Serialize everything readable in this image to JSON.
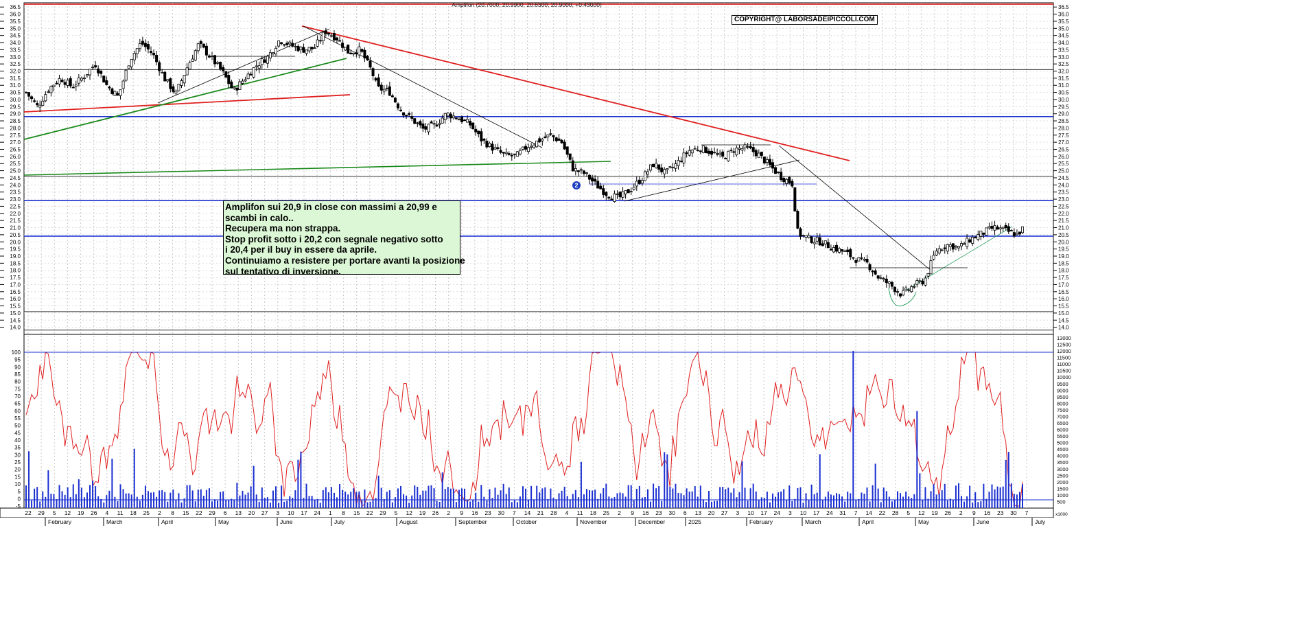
{
  "chart_data": [
    {
      "type": "candlestick",
      "title": "Amplifon (20.7000, 20.9900, 20.6300, 20.9000, +0.43000)",
      "ylim": [
        13.5,
        36.8
      ],
      "y_ticks": [
        "36.5",
        "36.0",
        "35.5",
        "35.0",
        "34.5",
        "34.0",
        "33.5",
        "33.0",
        "32.5",
        "32.0",
        "31.5",
        "31.0",
        "30.5",
        "30.0",
        "29.5",
        "29.0",
        "28.5",
        "28.0",
        "27.5",
        "27.0",
        "26.5",
        "26.0",
        "25.5",
        "25.0",
        "24.5",
        "24.0",
        "23.5",
        "23.0",
        "22.5",
        "22.0",
        "21.5",
        "21.0",
        "20.5",
        "20.0",
        "19.5",
        "19.0",
        "18.5",
        "18.0",
        "17.5",
        "17.0",
        "16.5",
        "16.0",
        "15.5",
        "15.0",
        "14.5",
        "14.0"
      ],
      "price_path": [
        [
          0,
          30.5
        ],
        [
          2,
          29.5
        ],
        [
          4,
          30.8
        ],
        [
          6,
          31.5
        ],
        [
          8,
          30.9
        ],
        [
          10,
          31.6
        ],
        [
          12,
          32.5
        ],
        [
          14,
          31.0
        ],
        [
          16,
          30.2
        ],
        [
          18,
          32.8
        ],
        [
          20,
          34.0
        ],
        [
          22,
          33.2
        ],
        [
          24,
          31.5
        ],
        [
          26,
          30.4
        ],
        [
          28,
          32.3
        ],
        [
          30,
          33.9
        ],
        [
          32,
          33.0
        ],
        [
          34,
          32.0
        ],
        [
          36,
          30.6
        ],
        [
          38,
          31.5
        ],
        [
          40,
          32.4
        ],
        [
          42,
          33.0
        ],
        [
          44,
          34.2
        ],
        [
          46,
          33.8
        ],
        [
          48,
          33.5
        ],
        [
          50,
          33.6
        ],
        [
          52,
          34.8
        ],
        [
          54,
          34.3
        ],
        [
          56,
          33.3
        ],
        [
          58,
          33.5
        ],
        [
          60,
          32.0
        ],
        [
          61,
          30.8
        ],
        [
          63,
          30.6
        ],
        [
          65,
          29.3
        ],
        [
          67,
          28.6
        ],
        [
          69,
          27.9
        ],
        [
          71,
          28.2
        ],
        [
          73,
          29.0
        ],
        [
          75,
          28.7
        ],
        [
          77,
          28.3
        ],
        [
          79,
          27.2
        ],
        [
          81,
          26.6
        ],
        [
          83,
          26.1
        ],
        [
          85,
          26.0
        ],
        [
          87,
          26.7
        ],
        [
          89,
          27.1
        ],
        [
          91,
          27.5
        ],
        [
          93,
          27.0
        ],
        [
          95,
          25.1
        ],
        [
          97,
          24.8
        ],
        [
          99,
          24.0
        ],
        [
          101,
          23.3
        ],
        [
          103,
          23.1
        ],
        [
          105,
          23.7
        ],
        [
          107,
          24.5
        ],
        [
          109,
          25.5
        ],
        [
          111,
          24.8
        ],
        [
          113,
          25.5
        ],
        [
          115,
          26.4
        ],
        [
          117,
          26.6
        ],
        [
          119,
          26.3
        ],
        [
          121,
          25.9
        ],
        [
          123,
          26.5
        ],
        [
          125,
          26.6
        ],
        [
          127,
          26.2
        ],
        [
          129,
          25.4
        ],
        [
          131,
          24.6
        ],
        [
          133,
          24.1
        ],
        [
          134,
          20.6
        ],
        [
          136,
          20.2
        ],
        [
          138,
          20.0
        ],
        [
          140,
          19.6
        ],
        [
          142,
          19.3
        ],
        [
          144,
          18.8
        ],
        [
          146,
          18.5
        ],
        [
          148,
          17.5
        ],
        [
          150,
          17.0
        ],
        [
          152,
          16.3
        ],
        [
          154,
          16.9
        ],
        [
          156,
          17.3
        ],
        [
          158,
          19.4
        ],
        [
          160,
          19.8
        ],
        [
          162,
          19.6
        ],
        [
          164,
          20.2
        ],
        [
          166,
          20.6
        ],
        [
          168,
          21.0
        ],
        [
          170,
          20.8
        ],
        [
          172,
          20.5
        ],
        [
          173,
          20.9
        ]
      ],
      "annotation": [
        "Amplifon sui 20,9  in close con massimi a 20,99 e",
        "scambi in calo..",
        "Recupera ma non strappa.",
        "Stop profit sotto i 20,2 con segnale negativo sotto",
        "i 20,4 per il buy in essere da aprile.",
        "Continuiamo a resistere per portare avanti la posizione",
        "sul tentativo di inversione."
      ],
      "copyright": "COPYRIGHT@ LABORSADEIPICCOLI.COM",
      "badge": "2",
      "horizontal_levels": [
        {
          "y": 36.7,
          "color": "#e02020"
        },
        {
          "y": 32.1,
          "color": "#333333"
        },
        {
          "y": 28.8,
          "color": "#1a2fd0"
        },
        {
          "y": 24.6,
          "color": "#333333"
        },
        {
          "y": 22.9,
          "color": "#1a2fd0"
        },
        {
          "y": 20.4,
          "color": "#1a2fd0"
        },
        {
          "y": 15.1,
          "color": "#333333"
        },
        {
          "y": 13.8,
          "color": "#333333"
        }
      ]
    },
    {
      "type": "line",
      "ylim": [
        -5,
        100
      ],
      "y_ticks": [
        "100",
        "95",
        "90",
        "85",
        "80",
        "75",
        "70",
        "65",
        "60",
        "55",
        "50",
        "45",
        "40",
        "35",
        "30",
        "25",
        "20",
        "15",
        "10",
        "5",
        "0",
        "-5"
      ],
      "color": "#e02020"
    },
    {
      "type": "bar",
      "ylim": [
        0,
        13000
      ],
      "y_ticks": [
        "13000",
        "12500",
        "12000",
        "11500",
        "11000",
        "10500",
        "10000",
        "9500",
        "9000",
        "8500",
        "8000",
        "7500",
        "7000",
        "6500",
        "6000",
        "5500",
        "5000",
        "4500",
        "4000",
        "3500",
        "3000",
        "2500",
        "2000",
        "1500",
        "1000",
        "500"
      ],
      "extra_label": "x1000",
      "color": "#1a2fd0"
    }
  ],
  "x_axis": {
    "day_ticks": [
      "22",
      "29",
      "5",
      "12",
      "19",
      "26",
      "4",
      "11",
      "18",
      "25",
      "2",
      "8",
      "15",
      "22",
      "29",
      "6",
      "13",
      "20",
      "27",
      "3",
      "10",
      "17",
      "24",
      "1",
      "8",
      "15",
      "22",
      "29",
      "5",
      "12",
      "19",
      "26",
      "2",
      "9",
      "16",
      "23",
      "30",
      "7",
      "14",
      "21",
      "28",
      "4",
      "11",
      "18",
      "25",
      "2",
      "9",
      "16",
      "23",
      "30",
      "6",
      "13",
      "20",
      "27",
      "3",
      "10",
      "17",
      "24",
      "3",
      "10",
      "17",
      "24",
      "31",
      "7",
      "14",
      "22",
      "28",
      "5",
      "12",
      "19",
      "26",
      "2",
      "9",
      "16",
      "23",
      "30",
      "7"
    ],
    "months": [
      {
        "label": "February",
        "x": 70
      },
      {
        "label": "March",
        "x": 155
      },
      {
        "label": "April",
        "x": 235
      },
      {
        "label": "May",
        "x": 318
      },
      {
        "label": "June",
        "x": 408
      },
      {
        "label": "July",
        "x": 487
      },
      {
        "label": "August",
        "x": 582
      },
      {
        "label": "September",
        "x": 668
      },
      {
        "label": "October",
        "x": 752
      },
      {
        "label": "November",
        "x": 845
      },
      {
        "label": "December",
        "x": 930
      },
      {
        "label": "2025",
        "x": 1003
      },
      {
        "label": "February",
        "x": 1092
      },
      {
        "label": "March",
        "x": 1173
      },
      {
        "label": "April",
        "x": 1256
      },
      {
        "label": "May",
        "x": 1338
      },
      {
        "label": "June",
        "x": 1423
      },
      {
        "label": "July",
        "x": 1508
      }
    ]
  }
}
